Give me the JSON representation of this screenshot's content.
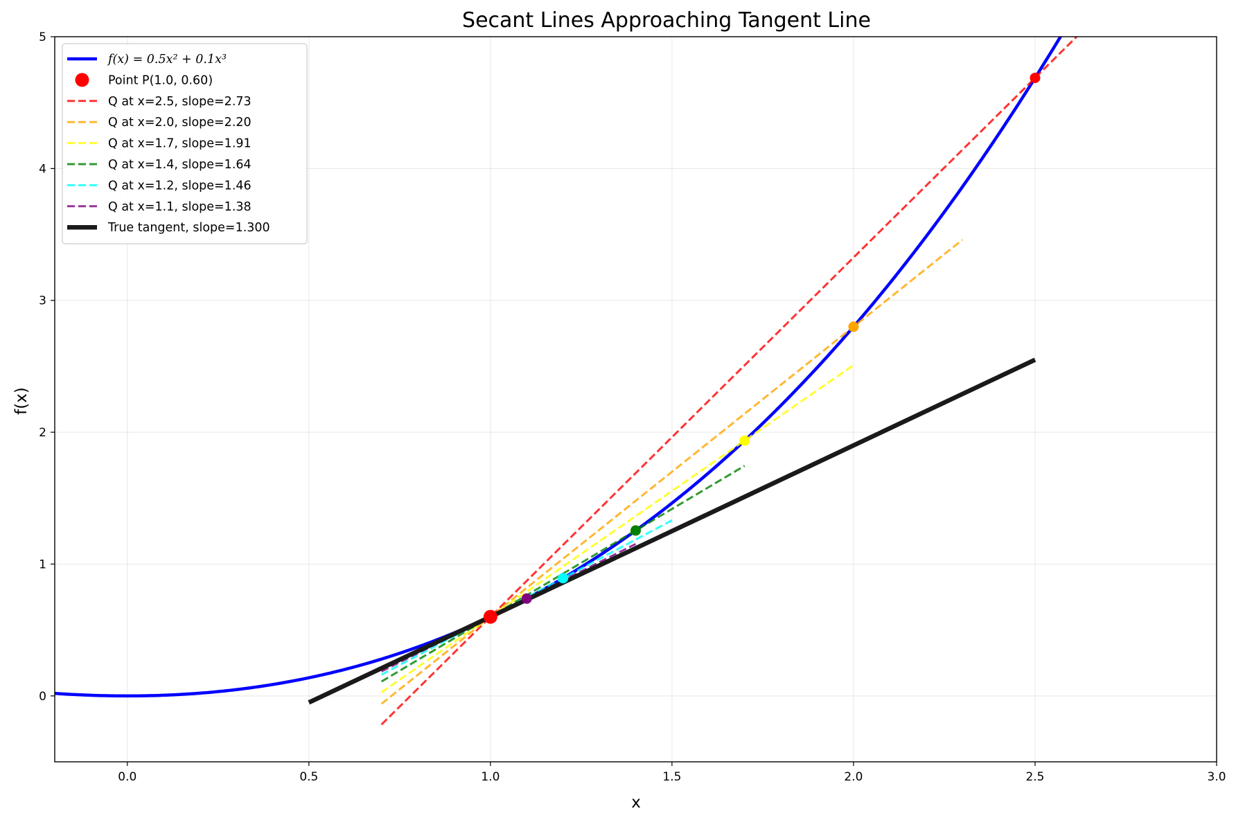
{
  "chart_data": {
    "type": "line",
    "title": "Secant Lines Approaching Tangent Line",
    "xlabel": "x",
    "ylabel": "f(x)",
    "xlim": [
      -0.2,
      3.0
    ],
    "ylim": [
      -0.5,
      5.0
    ],
    "grid": true,
    "legend_position": "top-left",
    "x_ticks": [
      0.0,
      0.5,
      1.0,
      1.5,
      2.0,
      2.5,
      3.0
    ],
    "x_tick_labels": [
      "0.0",
      "0.5",
      "1.0",
      "1.5",
      "2.0",
      "2.5",
      "3.0"
    ],
    "y_ticks": [
      0,
      1,
      2,
      3,
      4,
      5
    ],
    "y_tick_labels": [
      "0",
      "1",
      "2",
      "3",
      "4",
      "5"
    ],
    "curve": {
      "label": "f(x) = 0.5x² + 0.1x³",
      "color": "#0000ff",
      "a2": 0.5,
      "a3": 0.1
    },
    "point_p": {
      "label": "Point P(1.0, 0.60)",
      "x": 1.0,
      "y": 0.6,
      "color": "#ff0000"
    },
    "secants": [
      {
        "label": "Q at x=2.5, slope=2.73",
        "qx": 2.5,
        "qy": 4.6875,
        "slope": 2.725,
        "x_start": 0.7,
        "x_end": 2.8,
        "color": "#ff0000"
      },
      {
        "label": "Q at x=2.0, slope=2.20",
        "qx": 2.0,
        "qy": 2.8,
        "slope": 2.2,
        "x_start": 0.7,
        "x_end": 2.3,
        "color": "#ffa500"
      },
      {
        "label": "Q at x=1.7, slope=1.91",
        "qx": 1.7,
        "qy": 1.9363,
        "slope": 1.909,
        "x_start": 0.7,
        "x_end": 2.0,
        "color": "#ffff00"
      },
      {
        "label": "Q at x=1.4, slope=1.64",
        "qx": 1.4,
        "qy": 1.2544,
        "slope": 1.636,
        "x_start": 0.7,
        "x_end": 1.7,
        "color": "#008000"
      },
      {
        "label": "Q at x=1.2, slope=1.46",
        "qx": 1.2,
        "qy": 0.8928,
        "slope": 1.464,
        "x_start": 0.7,
        "x_end": 1.5,
        "color": "#00ffff"
      },
      {
        "label": "Q at x=1.1, slope=1.38",
        "qx": 1.1,
        "qy": 0.7381,
        "slope": 1.381,
        "x_start": 0.7,
        "x_end": 1.4,
        "color": "#800080"
      }
    ],
    "tangent": {
      "label": "True tangent, slope=1.300",
      "slope": 1.3,
      "x_start": 0.5,
      "x_end": 2.5,
      "color": "#1a1a1a"
    }
  }
}
